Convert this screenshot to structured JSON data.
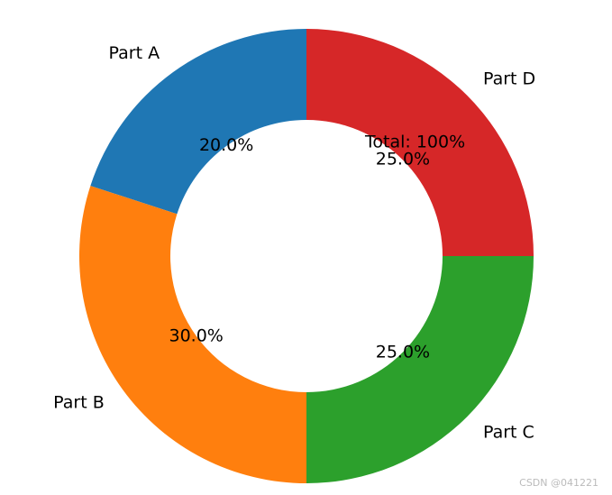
{
  "chart_data": {
    "type": "donut",
    "categories": [
      "Part A",
      "Part B",
      "Part C",
      "Part D"
    ],
    "values": [
      20,
      30,
      25,
      25
    ],
    "value_labels": [
      "20.0%",
      "30.0%",
      "25.0%",
      "25.0%"
    ],
    "colors": [
      "#1f77b4",
      "#ff7f0e",
      "#2ca02c",
      "#d62728"
    ],
    "annotation": "Total: 100%",
    "watermark": "CSDN @041221"
  }
}
